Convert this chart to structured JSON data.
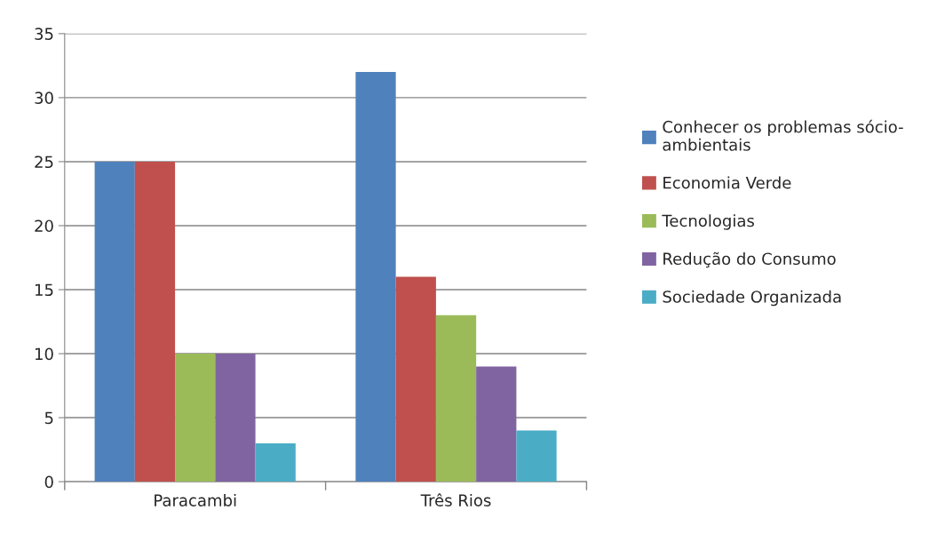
{
  "chart_data": {
    "type": "bar",
    "categories": [
      "Paracambi",
      "Três Rios"
    ],
    "series": [
      {
        "name": "Conhecer os problemas sócio-\nambientais",
        "color": "#4f81bd",
        "values": [
          25,
          32
        ]
      },
      {
        "name": "Economia Verde",
        "color": "#c0504d",
        "values": [
          25,
          16
        ]
      },
      {
        "name": "Tecnologias",
        "color": "#9bbb59",
        "values": [
          10,
          13
        ]
      },
      {
        "name": "Redução do Consumo",
        "color": "#8064a2",
        "values": [
          10,
          9
        ]
      },
      {
        "name": "Sociedade Organizada",
        "color": "#4bacc6",
        "values": [
          3,
          4
        ]
      }
    ],
    "ylim": [
      0,
      35
    ],
    "yticks": [
      0,
      5,
      10,
      15,
      20,
      25,
      30,
      35
    ],
    "grid": "y",
    "legend": "right"
  }
}
